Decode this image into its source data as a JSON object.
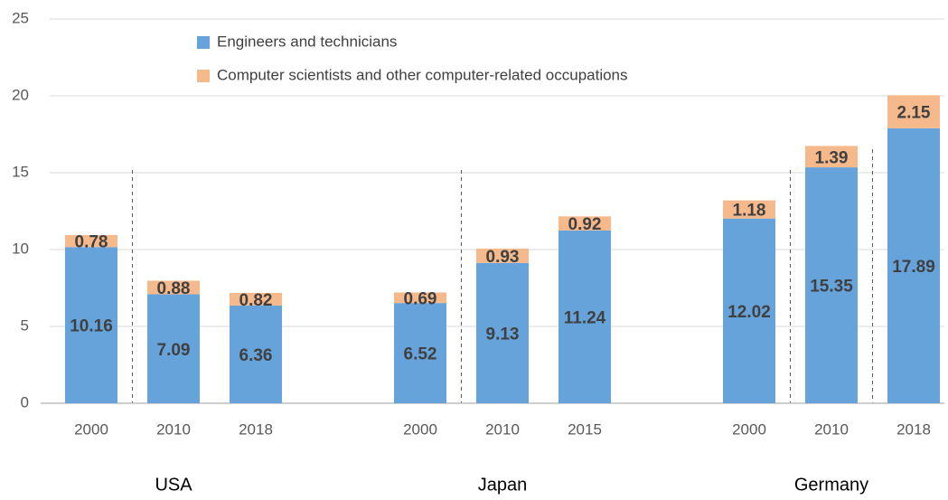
{
  "chart_data": {
    "type": "bar",
    "stacked": true,
    "categories": [
      "2000",
      "2010",
      "2018",
      null,
      "2000",
      "2010",
      "2015",
      null,
      "2000",
      "2010",
      "2018"
    ],
    "groups": [
      "USA",
      "Japan",
      "Germany"
    ],
    "series": [
      {
        "name": "Engineers and technicians",
        "color": "#66a3da",
        "values": [
          10.16,
          7.09,
          6.36,
          null,
          6.52,
          9.13,
          11.24,
          null,
          12.02,
          15.35,
          17.89
        ]
      },
      {
        "name": "Computer scientists and other computer-related occupations",
        "color": "#f6b98c",
        "values": [
          0.78,
          0.88,
          0.82,
          null,
          0.69,
          0.93,
          0.92,
          null,
          1.18,
          1.39,
          2.15
        ]
      }
    ],
    "ylim": [
      0,
      25
    ],
    "yticks": [
      0,
      5,
      10,
      15,
      20,
      25
    ],
    "grid": true,
    "legend": "top"
  }
}
